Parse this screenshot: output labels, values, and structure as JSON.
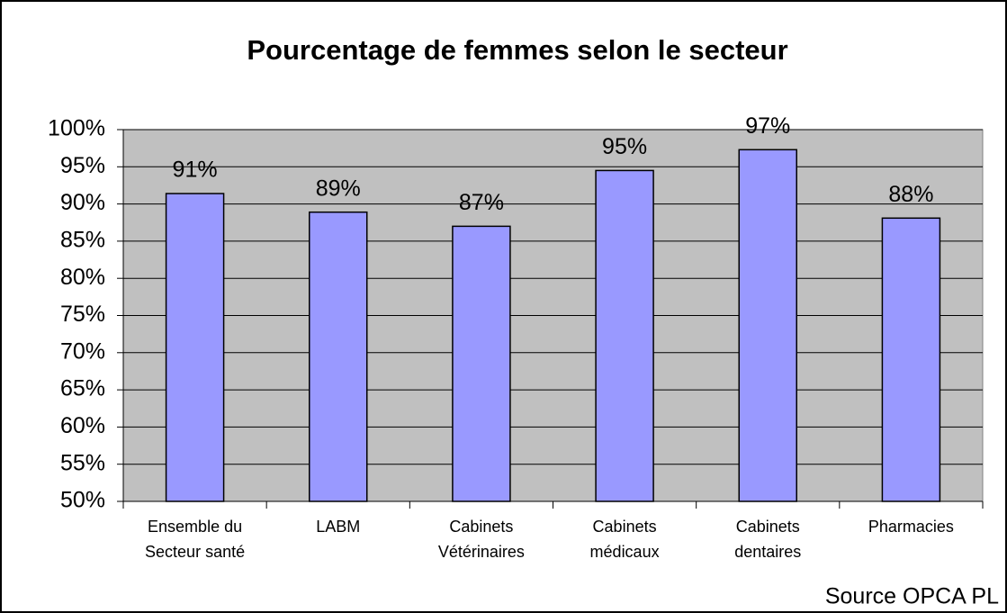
{
  "chart_data": {
    "type": "bar",
    "title": "Pourcentage de femmes selon le secteur",
    "categories": [
      "Ensemble du\nSecteur santé",
      "LABM",
      "Cabinets\nVétérinaires",
      "Cabinets\nmédicaux",
      "Cabinets\ndentaires",
      "Pharmacies"
    ],
    "values": [
      91.4,
      88.9,
      87.0,
      94.5,
      97.3,
      88.1
    ],
    "value_labels": [
      "91%",
      "89%",
      "87%",
      "95%",
      "97%",
      "88%"
    ],
    "color": "#9999ff",
    "ylim": [
      50,
      100
    ],
    "yticks": [
      {
        "value": 50,
        "label": "50%"
      },
      {
        "value": 55,
        "label": "55%"
      },
      {
        "value": 60,
        "label": "60%"
      },
      {
        "value": 65,
        "label": "65%"
      },
      {
        "value": 70,
        "label": "70%"
      },
      {
        "value": 75,
        "label": "75%"
      },
      {
        "value": 80,
        "label": "80%"
      },
      {
        "value": 85,
        "label": "85%"
      },
      {
        "value": 90,
        "label": "90%"
      },
      {
        "value": 95,
        "label": "95%"
      },
      {
        "value": 100,
        "label": "100%"
      }
    ],
    "grid": true,
    "source": "Source OPCA PL"
  }
}
